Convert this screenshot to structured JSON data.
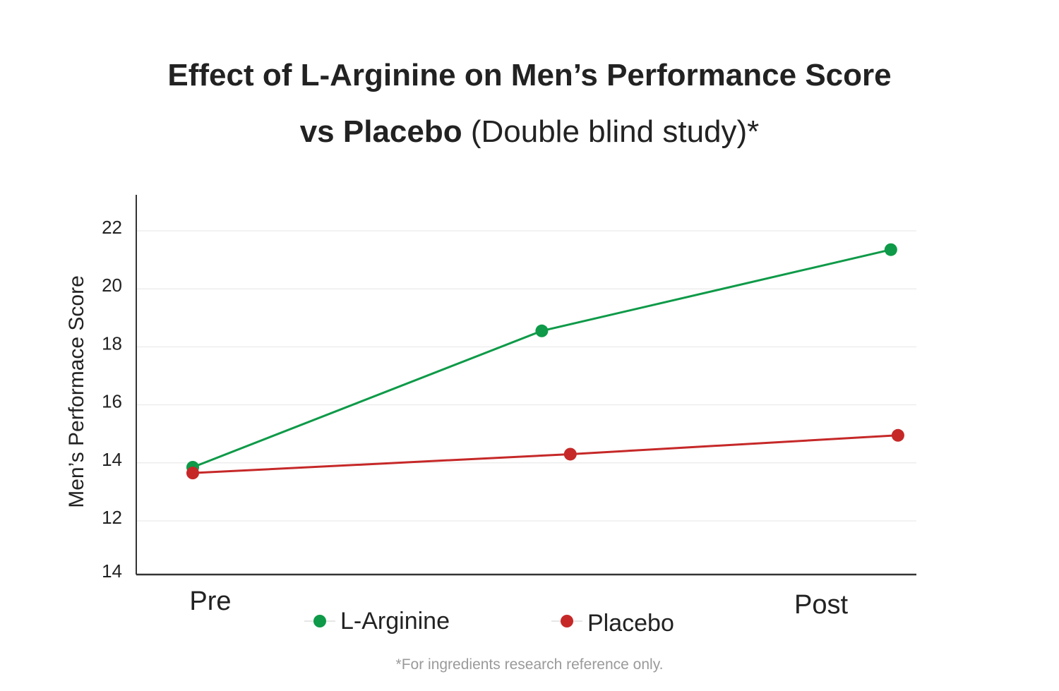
{
  "chart_data": {
    "type": "line",
    "title_line1": "Effect of L-Arginine on Men’s Performance Score",
    "title_line2_bold": "vs Placebo",
    "title_line2_light": "(Double blind study)*",
    "ylabel": "Men’s Performace Score",
    "xlabel": "",
    "x_tick_labels": [
      "Pre",
      "Post"
    ],
    "y_ticks": [
      22,
      20,
      18,
      16,
      14,
      12
    ],
    "y_bottom_label": "14",
    "ylim": [
      10.2,
      23.2
    ],
    "grid": true,
    "legend_placement": "bottom",
    "series": [
      {
        "name": "L-Arginine",
        "color": "#0e9a48",
        "x": [
          0,
          0.49,
          0.98
        ],
        "values": [
          13.85,
          18.55,
          21.35
        ]
      },
      {
        "name": "Placebo",
        "color": "#c62828",
        "x": [
          0,
          0.53,
          0.99
        ],
        "values": [
          13.65,
          14.3,
          14.95
        ]
      }
    ]
  },
  "footnote": "*For ingredients research reference only."
}
